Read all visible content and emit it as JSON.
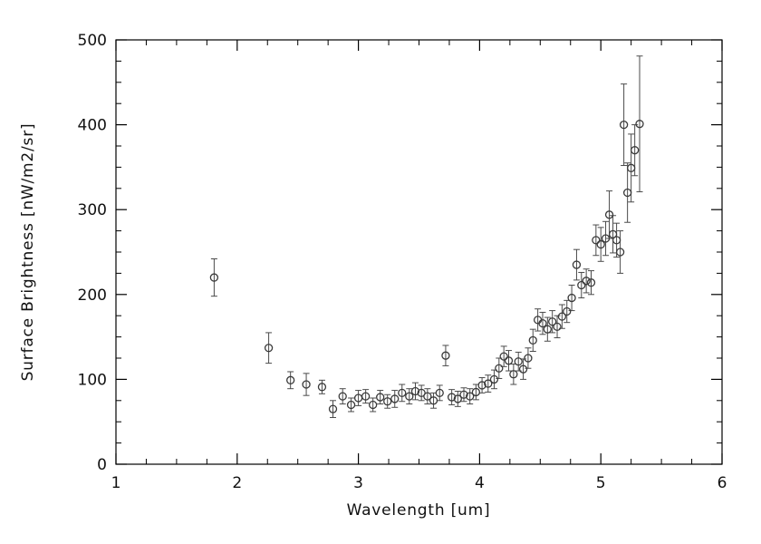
{
  "chart_data": {
    "type": "scatter",
    "title": "",
    "xlabel": "Wavelength [um]",
    "ylabel": "Surface Brightness [nW/m2/sr]",
    "xlim": [
      1,
      6
    ],
    "ylim": [
      0,
      500
    ],
    "x_ticks": [
      1,
      2,
      3,
      4,
      5,
      6
    ],
    "y_ticks": [
      0,
      100,
      200,
      300,
      400,
      500
    ],
    "x_minor_step": 0.25,
    "y_minor_step": 25,
    "grid": false,
    "legend": null,
    "marker": "open-circle",
    "error_bars": "vertical-with-caps",
    "series": [
      {
        "name": "surface-brightness",
        "points": [
          [
            1.81,
            220,
            22
          ],
          [
            2.26,
            137,
            18
          ],
          [
            2.44,
            99,
            10
          ],
          [
            2.57,
            94,
            13
          ],
          [
            2.7,
            91,
            8
          ],
          [
            2.79,
            65,
            10
          ],
          [
            2.87,
            80,
            9
          ],
          [
            2.94,
            70,
            8
          ],
          [
            3.0,
            78,
            9
          ],
          [
            3.06,
            80,
            8
          ],
          [
            3.12,
            70,
            8
          ],
          [
            3.18,
            79,
            8
          ],
          [
            3.24,
            74,
            8
          ],
          [
            3.3,
            77,
            10
          ],
          [
            3.36,
            84,
            10
          ],
          [
            3.42,
            80,
            9
          ],
          [
            3.47,
            86,
            10
          ],
          [
            3.52,
            84,
            9
          ],
          [
            3.57,
            80,
            9
          ],
          [
            3.62,
            75,
            9
          ],
          [
            3.67,
            84,
            9
          ],
          [
            3.72,
            128,
            12
          ],
          [
            3.77,
            79,
            9
          ],
          [
            3.82,
            77,
            9
          ],
          [
            3.87,
            82,
            8
          ],
          [
            3.92,
            80,
            9
          ],
          [
            3.97,
            85,
            9
          ],
          [
            4.02,
            93,
            9
          ],
          [
            4.07,
            95,
            10
          ],
          [
            4.12,
            100,
            11
          ],
          [
            4.16,
            113,
            12
          ],
          [
            4.2,
            127,
            12
          ],
          [
            4.24,
            122,
            12
          ],
          [
            4.28,
            106,
            12
          ],
          [
            4.32,
            121,
            11
          ],
          [
            4.36,
            112,
            12
          ],
          [
            4.4,
            125,
            12
          ],
          [
            4.44,
            146,
            13
          ],
          [
            4.48,
            170,
            13
          ],
          [
            4.52,
            166,
            13
          ],
          [
            4.56,
            159,
            14
          ],
          [
            4.6,
            168,
            13
          ],
          [
            4.64,
            162,
            13
          ],
          [
            4.68,
            174,
            14
          ],
          [
            4.72,
            180,
            13
          ],
          [
            4.76,
            196,
            15
          ],
          [
            4.8,
            235,
            18
          ],
          [
            4.84,
            211,
            15
          ],
          [
            4.88,
            216,
            14
          ],
          [
            4.92,
            214,
            14
          ],
          [
            4.96,
            264,
            18
          ],
          [
            5.0,
            259,
            20
          ],
          [
            5.04,
            266,
            20
          ],
          [
            5.07,
            294,
            28
          ],
          [
            5.1,
            271,
            22
          ],
          [
            5.13,
            264,
            20
          ],
          [
            5.16,
            250,
            25
          ],
          [
            5.19,
            400,
            48
          ],
          [
            5.22,
            320,
            35
          ],
          [
            5.25,
            349,
            40
          ],
          [
            5.28,
            370,
            30
          ],
          [
            5.32,
            401,
            80
          ]
        ]
      }
    ]
  },
  "colors": {
    "background": "#ffffff",
    "axis": "#000000",
    "marker": "#3a3a3a",
    "error_bar": "#4a4a4a",
    "text": "#111111"
  }
}
